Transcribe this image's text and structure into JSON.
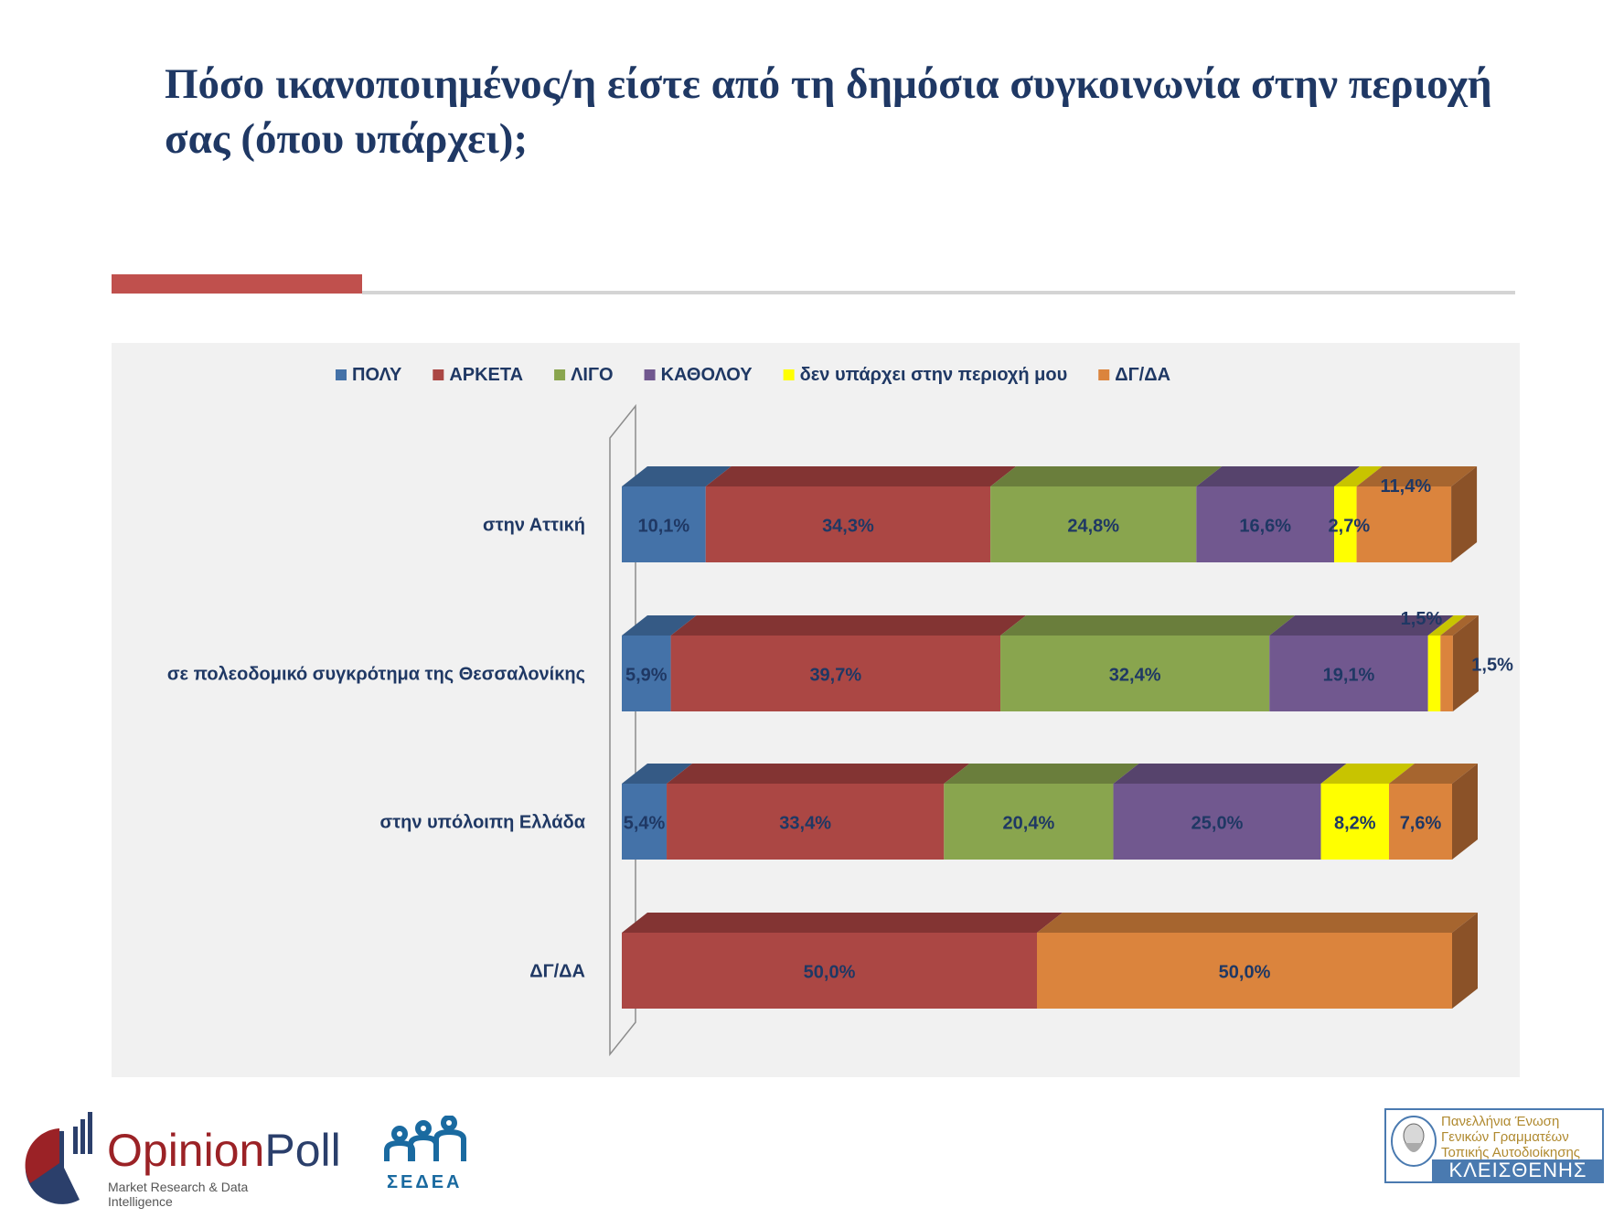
{
  "slide": {
    "title": "Πόσο ικανοποιημένος/η είστε από τη δημόσια συγκοινωνία στην περιοχή σας (όπου υπάρχει);"
  },
  "chart_data": {
    "type": "bar",
    "orientation": "horizontal",
    "stacked": "100%",
    "style": "3d",
    "title": "",
    "xlabel": "",
    "ylabel": "",
    "xlim": [
      0,
      100
    ],
    "grid": false,
    "legend": "top",
    "value_format": "{v}%",
    "decimal_separator": ",",
    "categories": [
      "στην Αττική",
      "σε πολεοδομικό συγκρότημα της Θεσσαλονίκης",
      "στην υπόλοιπη Ελλάδα",
      "ΔΓ/ΔΑ"
    ],
    "series": [
      {
        "name": "ΠΟΛΥ",
        "color": "#4472a8",
        "top_color": "#355a85",
        "values": [
          10.1,
          5.9,
          5.4,
          0
        ]
      },
      {
        "name": "ΑΡΚΕΤΑ",
        "color": "#ab4744",
        "top_color": "#833433",
        "values": [
          34.3,
          39.7,
          33.4,
          50.0
        ]
      },
      {
        "name": "ΛΙΓΟ",
        "color": "#89a54e",
        "top_color": "#6a7e3c",
        "values": [
          24.8,
          32.4,
          20.4,
          0
        ]
      },
      {
        "name": "ΚΑΘΟΛΟΥ",
        "color": "#71588f",
        "top_color": "#56436c",
        "values": [
          16.6,
          19.1,
          25.0,
          0
        ]
      },
      {
        "name": "δεν υπάρχει στην περιοχή μου",
        "color": "#ffff00",
        "top_color": "#c8c400",
        "values": [
          2.7,
          1.5,
          8.2,
          0
        ]
      },
      {
        "name": "ΔΓ/ΔΑ",
        "color": "#db843d",
        "top_color": "#a6652f",
        "side_color": "#8b5228",
        "values": [
          11.4,
          1.5,
          7.6,
          50.0
        ]
      }
    ],
    "data_labels": [
      [
        "10,1%",
        "34,3%",
        "24,8%",
        "16,6%",
        "2,7%",
        "11,4%"
      ],
      [
        "5,9%",
        "39,7%",
        "32,4%",
        "19,1%",
        "1,5%",
        "1,5%"
      ],
      [
        "5,4%",
        "33,4%",
        "20,4%",
        "25,0%",
        "8,2%",
        "7,6%"
      ],
      [
        "",
        "50,0%",
        "",
        "",
        "",
        "50,0%"
      ]
    ],
    "label_color": "#1f3864"
  },
  "logos": {
    "opinionpoll": {
      "name_part1": "Opinion",
      "name_part2": "Poll",
      "tagline": "Market Research & Data Intelligence"
    },
    "sedea": {
      "text": "ΣΕΔΕΑ"
    },
    "kleisthenis": {
      "line1": "Πανελλήνια Ένωση",
      "line2": "Γενικών Γραμματέων",
      "line3": "Τοπικής Αυτοδιοίκησης",
      "band": "ΚΛΕΙΣΘΕΝΗΣ"
    }
  }
}
